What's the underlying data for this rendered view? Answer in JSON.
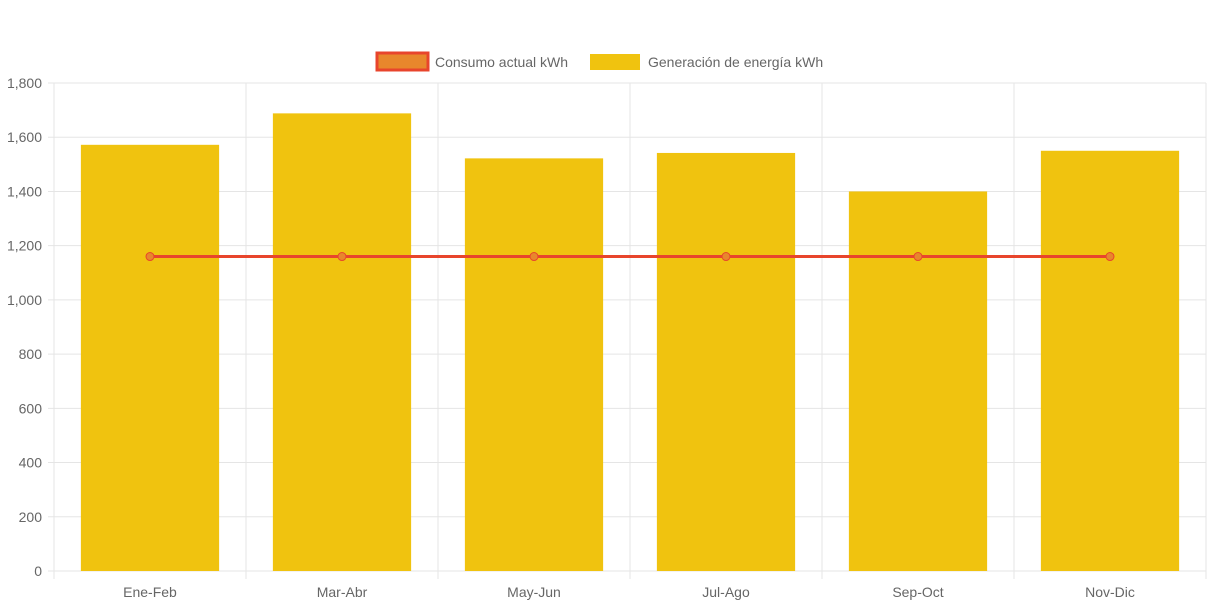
{
  "chart_data": {
    "type": "bar",
    "categories": [
      "Ene-Feb",
      "Mar-Abr",
      "May-Jun",
      "Jul-Ago",
      "Sep-Oct",
      "Nov-Dic"
    ],
    "series": [
      {
        "name": "Consumo actual kWh",
        "type": "line",
        "values": [
          1160,
          1160,
          1160,
          1160,
          1160,
          1160
        ],
        "color": "#e8452c",
        "fill": "#e8872c"
      },
      {
        "name": "Generación de energía kWh",
        "type": "bar",
        "values": [
          1572,
          1688,
          1522,
          1542,
          1400,
          1550
        ],
        "color": "#f0c30f"
      }
    ],
    "ylim": [
      0,
      1800
    ],
    "yticks": [
      "0",
      "200",
      "400",
      "600",
      "800",
      "1,000",
      "1,200",
      "1,400",
      "1,600",
      "1,800"
    ],
    "grid": true,
    "legend_position": "top-center",
    "grid_color": "#e5e5e5"
  }
}
